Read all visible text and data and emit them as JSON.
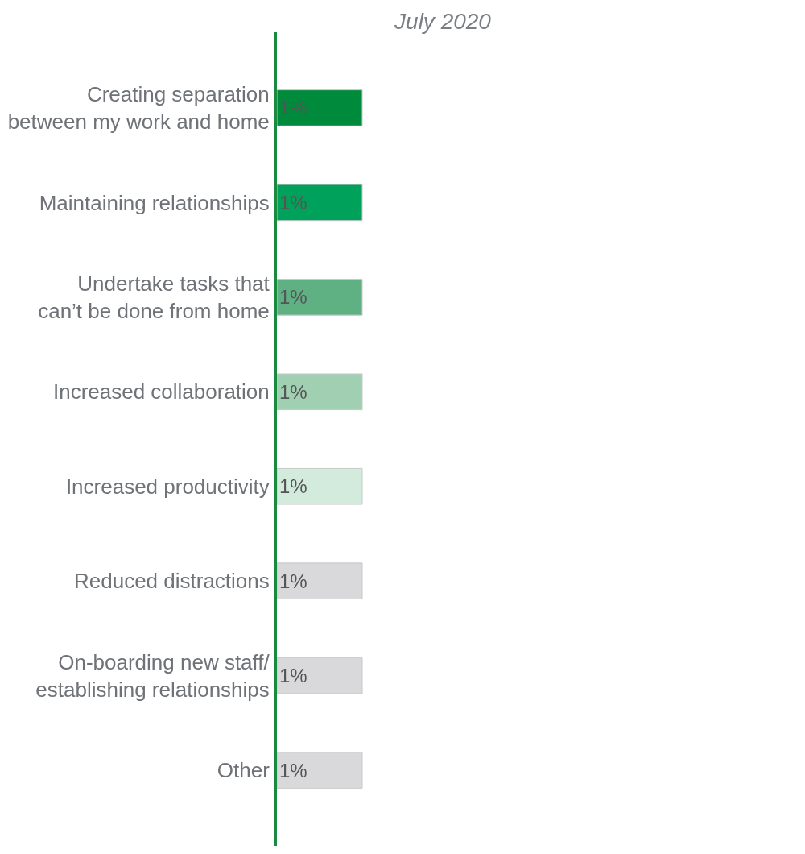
{
  "chart_data": {
    "type": "bar",
    "orientation": "horizontal",
    "title": "July 2020",
    "categories": [
      "Creating separation between my work and home",
      "Maintaining relationships",
      "Undertake tasks that can’t be done from home",
      "Increased collaboration",
      "Increased productivity",
      "Reduced distractions",
      "On-boarding new staff/ establishing relationships",
      "Other"
    ],
    "values": [
      1,
      1,
      1,
      1,
      1,
      1,
      1,
      1
    ],
    "value_labels": [
      "1%",
      "1%",
      "1%",
      "1%",
      "1%",
      "1%",
      "1%",
      "1%"
    ],
    "colors": [
      "#008a3c",
      "#00a15a",
      "#5fb184",
      "#a0cfb2",
      "#d3ebdd",
      "#d9d9dc",
      "#d9d9dc",
      "#d9d9dc"
    ]
  }
}
